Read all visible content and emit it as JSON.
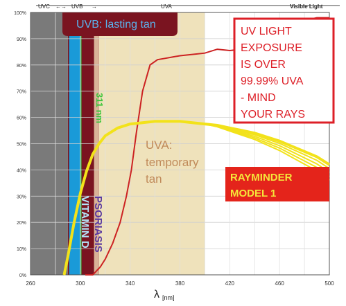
{
  "chart_data": {
    "type": "line",
    "xlabel": "λ",
    "xlabel_unit": "[nm]",
    "xlim": [
      260,
      500
    ],
    "ylim": [
      0,
      100
    ],
    "x_ticks": [
      "260",
      "300",
      "340",
      "380",
      "420",
      "460",
      "500"
    ],
    "y_ticks": [
      "0%",
      "10%",
      "20%",
      "30%",
      "40%",
      "50%",
      "60%",
      "70%",
      "80%",
      "90%",
      "100%"
    ],
    "grid": true,
    "top_ruler": {
      "labels": [
        "UVC",
        "UVB",
        "UVA",
        "Visible Light"
      ]
    },
    "bands": {
      "uvc_block_color": "#7a7a7a",
      "uvb_outer_color": "#7a1420",
      "uvb_inner_color": "#1a9ad8",
      "uva_fill_color": "#efe2bb"
    },
    "labels": {
      "uvb": "UVB: lasting tan",
      "nm311": "311 nm",
      "uva_lines": [
        "UVA:",
        "temporary",
        "tan"
      ],
      "psoriasis": "PSORIASIS",
      "vitamin_d": "VITAMIN D",
      "uv_box_lines": [
        "UV LIGHT",
        "EXPOSURE",
        "IS OVER",
        "99.99% UVA",
        "- MIND",
        "YOUR RAYS"
      ],
      "rayminder_lines": [
        "RAYMINDER",
        "MODEL 1"
      ]
    },
    "series": [
      {
        "color": "#cc2222",
        "x": [
          304,
          310,
          316,
          320,
          326,
          332,
          337,
          341,
          345,
          350,
          356,
          362,
          368,
          374,
          380,
          390,
          400,
          410,
          420,
          430,
          440,
          450,
          460,
          470,
          480,
          490,
          500
        ],
        "y": [
          0,
          0,
          3,
          6,
          12,
          20,
          30,
          40,
          54,
          70,
          80,
          82,
          82.5,
          83,
          83.5,
          84,
          84.5,
          86,
          85.5,
          86,
          89,
          90,
          91,
          94,
          97,
          98,
          98
        ]
      },
      {
        "color": "#f2e21a",
        "x": [
          287,
          290,
          295,
          300,
          305,
          310,
          315,
          320,
          330,
          340,
          350,
          360,
          370,
          380,
          390,
          400,
          410,
          420,
          430,
          440,
          450,
          460,
          470,
          480,
          490,
          500
        ],
        "y": [
          0,
          7,
          20,
          31,
          39.5,
          46,
          50,
          53,
          56,
          57.5,
          58,
          58.5,
          58.5,
          58.5,
          58,
          57.5,
          57,
          56,
          55,
          54,
          52.5,
          51,
          49,
          47,
          45,
          42
        ]
      }
    ]
  }
}
